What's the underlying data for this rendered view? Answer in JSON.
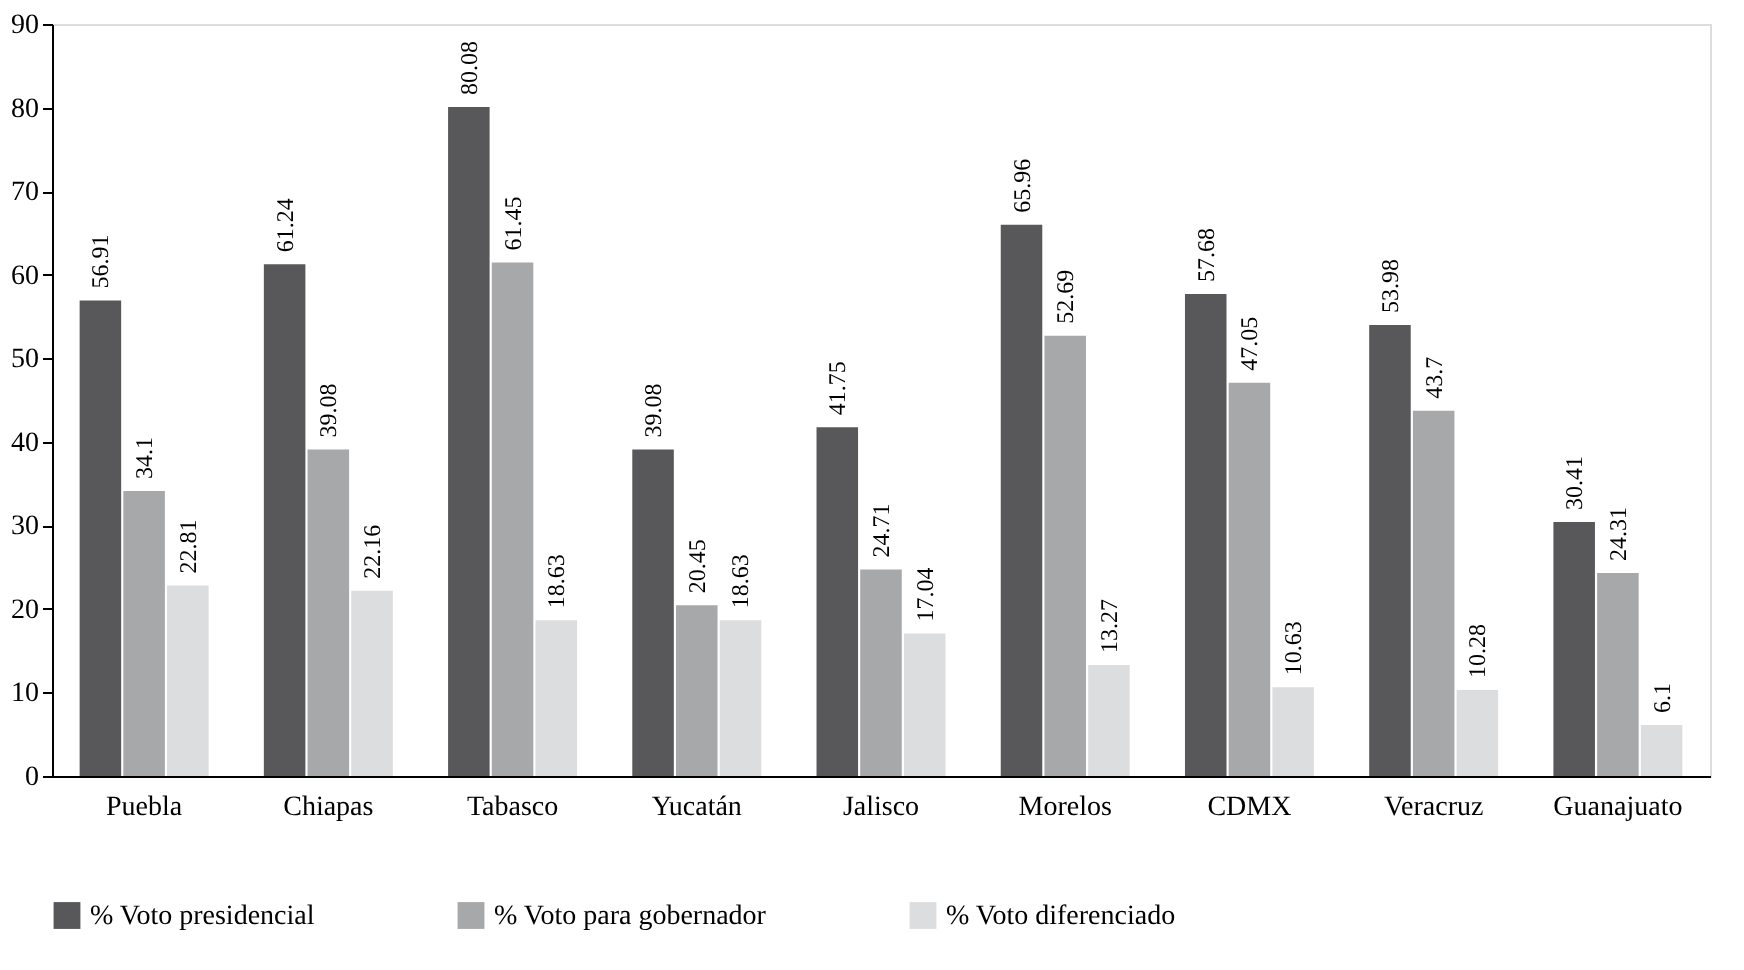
{
  "chart_data": {
    "type": "bar",
    "categories": [
      "Puebla",
      "Chiapas",
      "Tabasco",
      "Yucatán",
      "Jalisco",
      "Morelos",
      "CDMX",
      "Veracruz",
      "Guanajuato"
    ],
    "series": [
      {
        "name": "% Voto presidencial",
        "color": "#58585a",
        "values": [
          56.91,
          61.24,
          80.08,
          39.08,
          41.75,
          65.96,
          57.68,
          53.98,
          30.41
        ]
      },
      {
        "name": "% Voto para gobernador",
        "color": "#a7a8aa",
        "values": [
          34.1,
          39.08,
          61.45,
          20.45,
          24.71,
          52.69,
          47.05,
          43.7,
          24.31
        ]
      },
      {
        "name": "% Voto diferenciado",
        "color": "#dcdddf",
        "values": [
          22.81,
          22.16,
          18.63,
          18.63,
          17.04,
          13.27,
          10.63,
          10.28,
          6.1
        ]
      }
    ],
    "ylim": [
      0,
      90
    ],
    "yticks": [
      0,
      10,
      20,
      30,
      40,
      50,
      60,
      70,
      80,
      90
    ],
    "grid": false,
    "legend": "bottom",
    "data_labels": true
  }
}
